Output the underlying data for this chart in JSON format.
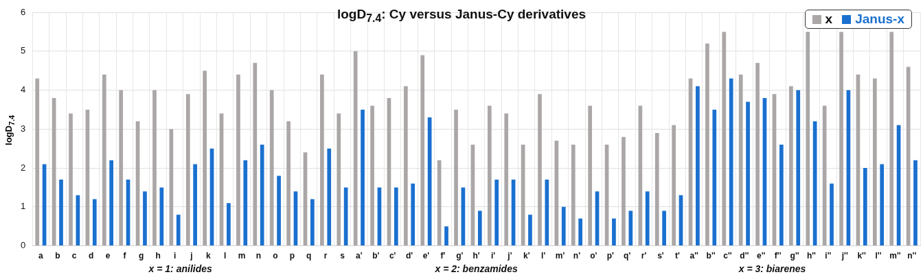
{
  "chart_data": {
    "type": "bar",
    "title": "logD$_{7.4}$: Cy versus Janus-Cy derivatives",
    "ylabel": "logD$_{7.4}$",
    "categories": [
      "a",
      "b",
      "c",
      "d",
      "e",
      "f",
      "g",
      "h",
      "i",
      "j",
      "k",
      "l",
      "m",
      "n",
      "o",
      "p",
      "q",
      "r",
      "s",
      "a'",
      "b'",
      "c'",
      "d'",
      "e'",
      "f'",
      "g'",
      "h'",
      "i'",
      "j'",
      "k'",
      "l'",
      "m'",
      "n'",
      "o'",
      "p'",
      "q'",
      "r'",
      "s'",
      "t'",
      "a''",
      "b''",
      "c''",
      "d''",
      "e''",
      "f''",
      "g''",
      "h''",
      "i''",
      "j''",
      "k''",
      "l''",
      "m''",
      "n''"
    ],
    "series": [
      {
        "name": "x",
        "color": "#aba7a7",
        "values": [
          4.3,
          3.8,
          3.4,
          3.5,
          4.4,
          4.0,
          3.2,
          4.0,
          3.0,
          3.9,
          4.5,
          3.4,
          4.4,
          4.7,
          4.0,
          3.2,
          2.4,
          4.4,
          3.4,
          5.0,
          3.6,
          3.8,
          4.1,
          4.9,
          2.2,
          3.5,
          2.6,
          3.6,
          3.4,
          2.6,
          3.9,
          2.7,
          2.6,
          3.6,
          2.6,
          2.8,
          3.6,
          2.9,
          3.1,
          4.3,
          5.2,
          5.5,
          4.4,
          4.7,
          3.9,
          4.1,
          5.5,
          3.6,
          5.5,
          4.4,
          4.3,
          5.5,
          4.6
        ]
      },
      {
        "name": "Janus-x",
        "color": "#1a70cf",
        "values": [
          2.1,
          1.7,
          1.3,
          1.2,
          2.2,
          1.7,
          1.4,
          1.5,
          0.8,
          2.1,
          2.5,
          1.1,
          2.2,
          2.6,
          1.8,
          1.4,
          1.2,
          2.5,
          1.5,
          3.5,
          1.5,
          1.5,
          1.6,
          3.3,
          0.5,
          1.5,
          0.9,
          1.7,
          1.7,
          0.8,
          1.7,
          1.0,
          0.7,
          1.4,
          0.7,
          0.9,
          1.4,
          0.9,
          1.3,
          4.1,
          3.5,
          4.3,
          3.7,
          3.8,
          2.6,
          4.0,
          3.2,
          1.6,
          4.0,
          2.0,
          2.1,
          3.1,
          2.2
        ]
      }
    ],
    "ylim": [
      0,
      6
    ],
    "yticks": [
      0,
      1,
      2,
      3,
      4,
      5,
      6
    ],
    "grid": true,
    "legend": "top right",
    "annotations": [
      "x = 1: anilides",
      "x = 2: benzamides",
      "x = 3: biarenes"
    ]
  }
}
